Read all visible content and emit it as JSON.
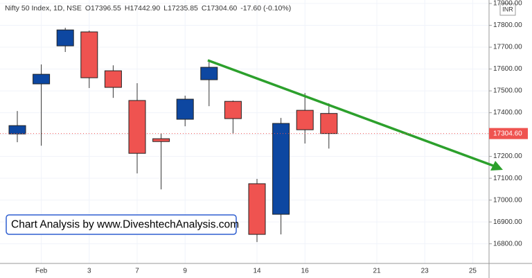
{
  "chart_data": {
    "type": "candlestick",
    "legend": {
      "symbol": "Nifty 50 Index, 1D, NSE",
      "open": "O17396.55",
      "high": "H17442.90",
      "low": "L17235.85",
      "close": "C17304.60",
      "change": "-17.60 (-0.10%)"
    },
    "annotation": "Chart Analysis by www.DiveshtechAnalysis.com",
    "currency": "INR",
    "categories": [
      null,
      "Feb",
      null,
      "3",
      null,
      "7",
      null,
      "9",
      null,
      null,
      "14",
      null,
      "16",
      null,
      null,
      "21",
      null,
      "23",
      null,
      "25"
    ],
    "open": [
      17303,
      17532,
      17706,
      17770,
      17592,
      17456,
      17281,
      17370,
      17551,
      17452,
      17075,
      16935,
      17411,
      17396.55,
      null,
      null,
      null,
      null,
      null,
      null
    ],
    "high": [
      17408,
      17621,
      17789,
      17776,
      17617,
      17535,
      17306,
      17478,
      17636,
      17456,
      17097,
      17376,
      17490,
      17442.9,
      null,
      null,
      null,
      null,
      null,
      null
    ],
    "low": [
      17265,
      17249,
      17678,
      17513,
      17468,
      17122,
      17049,
      17338,
      17430,
      17303,
      16808,
      16843,
      17259,
      17235.85,
      null,
      null,
      null,
      null,
      null,
      null
    ],
    "close": [
      17341,
      17576,
      17779,
      17560,
      17516,
      17214,
      17268,
      17462,
      17608,
      17373,
      16843,
      17351,
      17322,
      17304.6,
      null,
      null,
      null,
      null,
      null,
      null
    ],
    "up_color": "#0d47a1",
    "down_color": "#ef5350",
    "last_price": {
      "value": 17304.6,
      "label": "17304.60"
    },
    "ylim": [
      16710,
      17916
    ],
    "yticks": [
      {
        "value": 16800,
        "label": "16800.00"
      },
      {
        "value": 16900,
        "label": "16900.00"
      },
      {
        "value": 17000,
        "label": "17000.00"
      },
      {
        "value": 17100,
        "label": "17100.00"
      },
      {
        "value": 17200,
        "label": "17200.00"
      },
      {
        "value": 17300,
        "label": "17300.00"
      },
      {
        "value": 17400,
        "label": "17400.00"
      },
      {
        "value": 17500,
        "label": "17500.00"
      },
      {
        "value": 17600,
        "label": "17600.00"
      },
      {
        "value": 17700,
        "label": "17700.00"
      },
      {
        "value": 17800,
        "label": "17800.00"
      },
      {
        "value": 17900,
        "label": "17900.00"
      }
    ],
    "grid": true
  }
}
